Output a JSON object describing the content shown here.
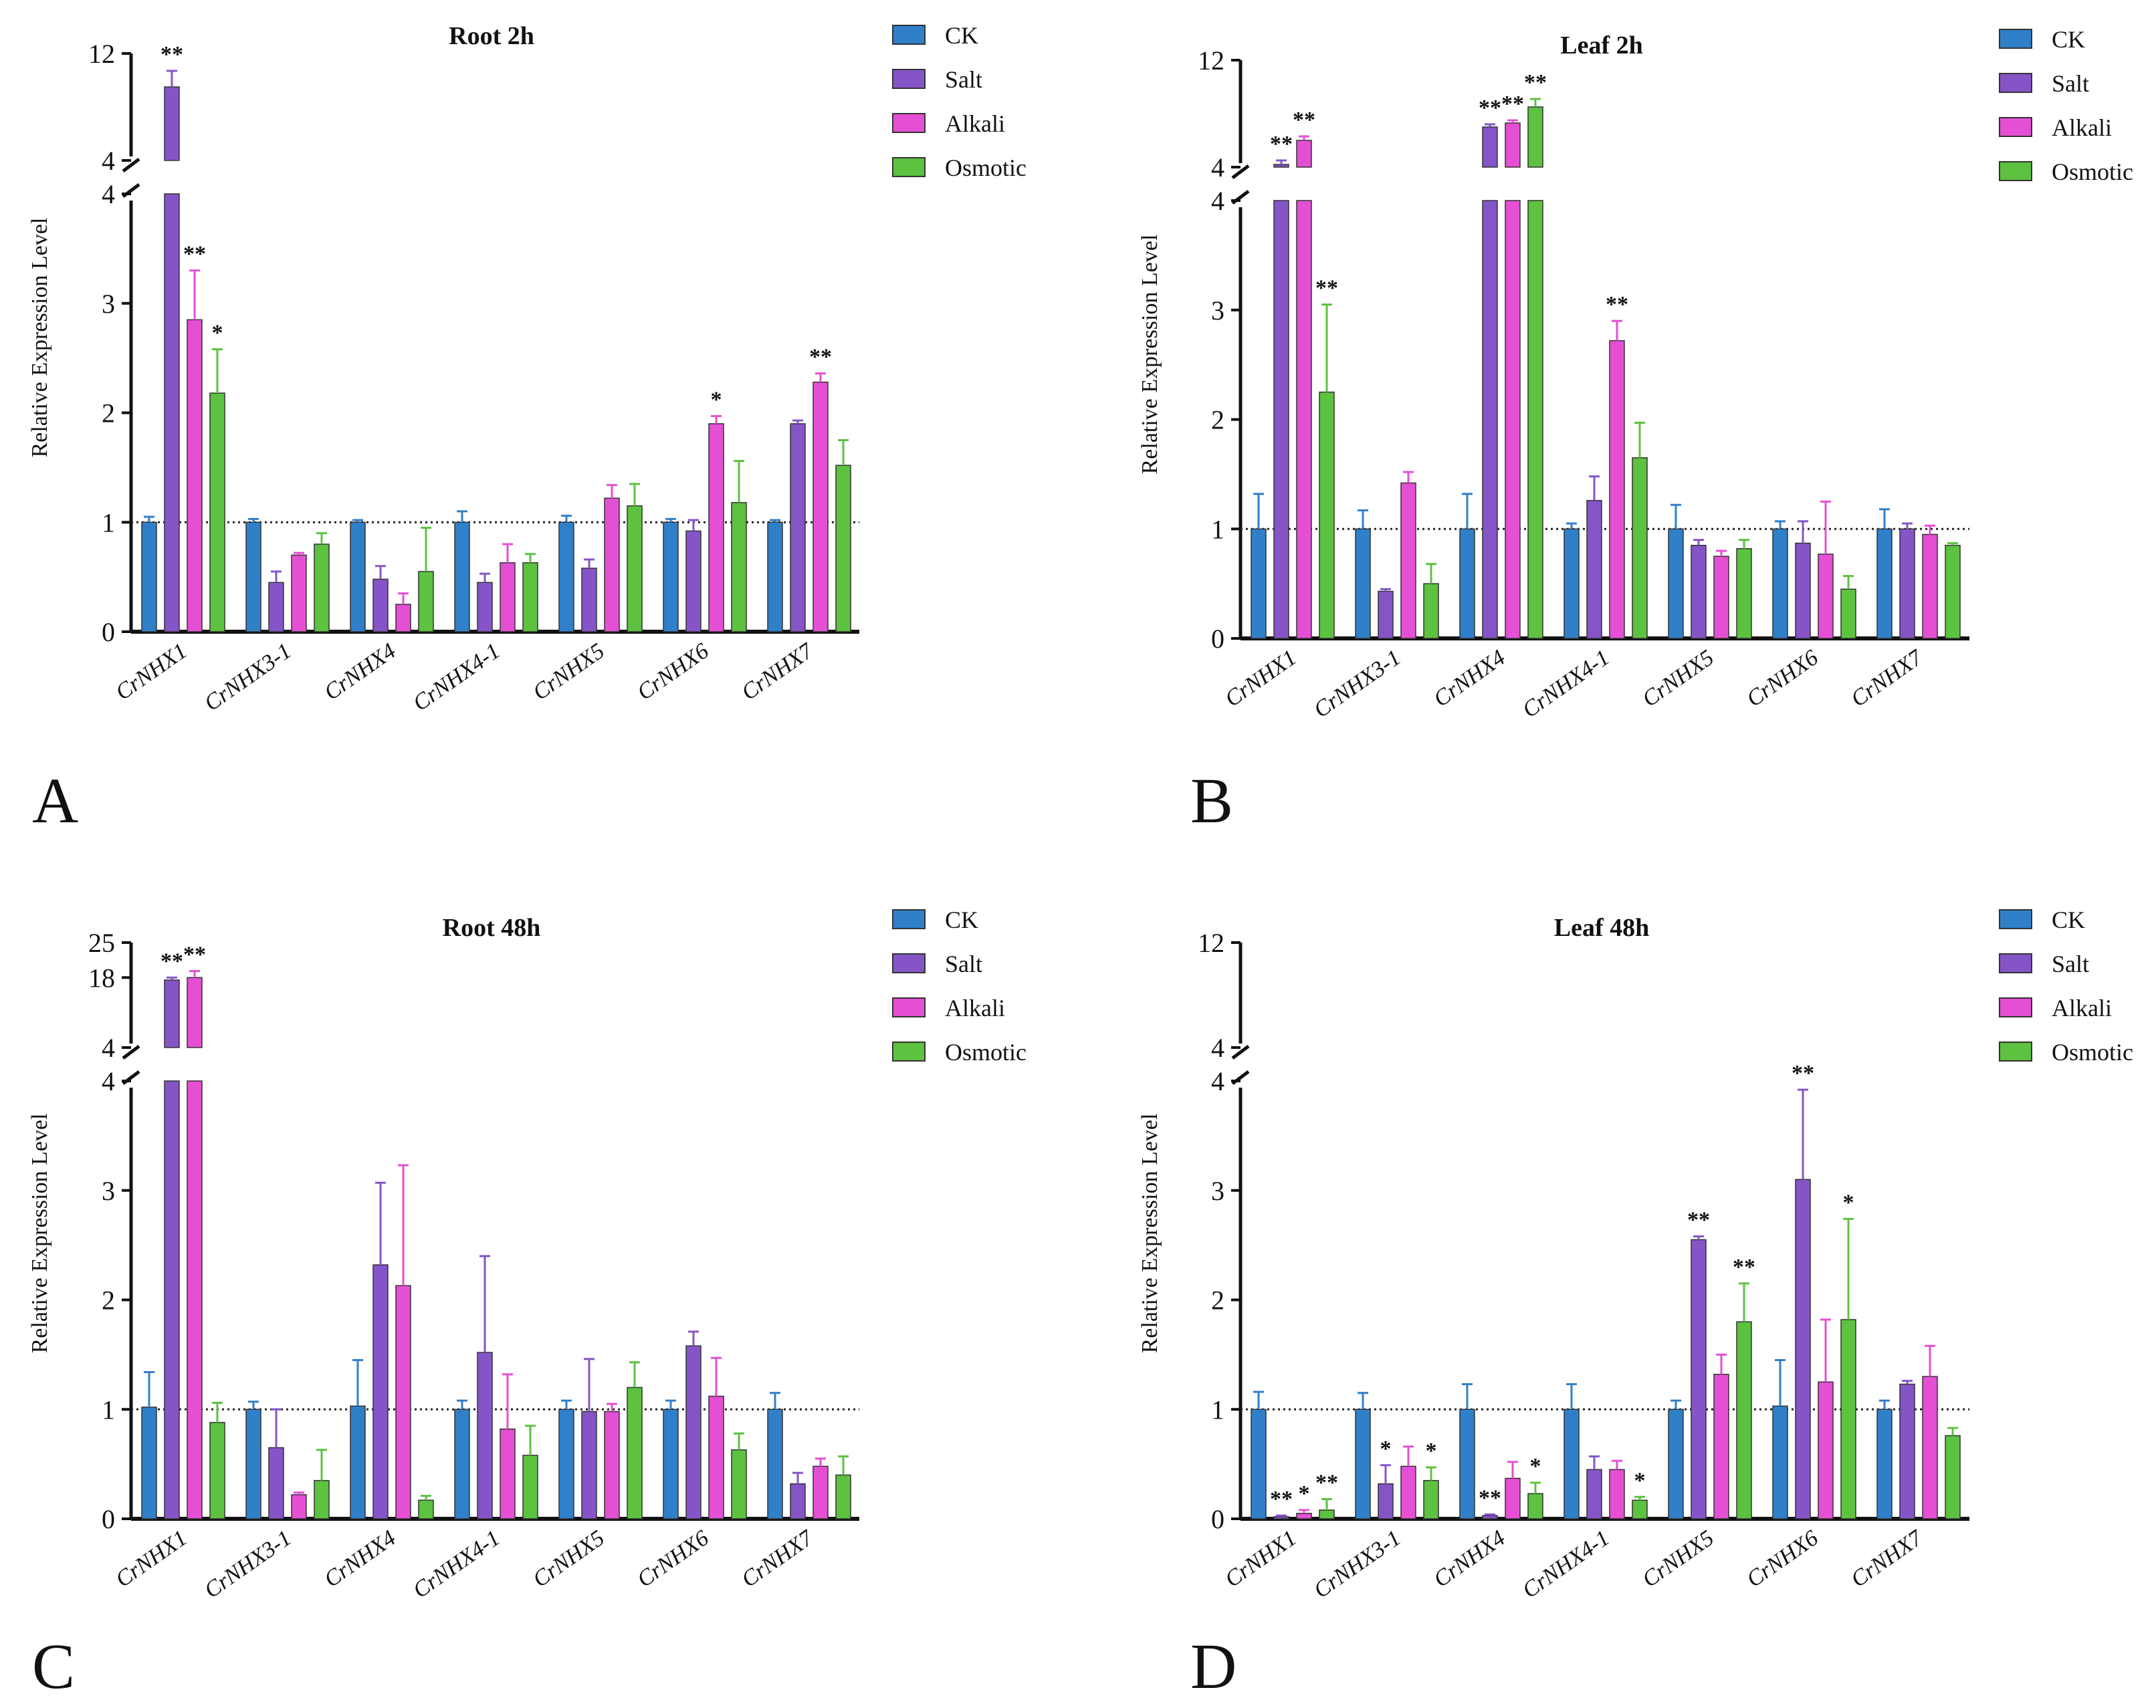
{
  "colors": {
    "CK": "#2f7fc9",
    "Salt": "#8555c7",
    "Alkali": "#e54fd4",
    "Osmotic": "#5cc23f",
    "axis": "#111111"
  },
  "chart_data": [
    {
      "type": "bar",
      "panel": "A",
      "title": "Root 2h",
      "ylabel": "Relative Expression Level",
      "xlabel": "",
      "categories": [
        "CrNHX1",
        "CrNHX3-1",
        "CrNHX4",
        "CrNHX4-1",
        "CrNHX5",
        "CrNHX6",
        "CrNHX7"
      ],
      "lower_axis": {
        "ylim": [
          0,
          4
        ],
        "ticks": [
          "0",
          "1",
          "2",
          "3",
          "4"
        ]
      },
      "upper_axis": {
        "ylim": [
          4,
          12
        ],
        "ticks": [
          "4",
          "12"
        ]
      },
      "reference_line": 1,
      "legend": [
        "CK",
        "Salt",
        "Alkali",
        "Osmotic"
      ],
      "series": [
        {
          "name": "CK",
          "values": [
            1.0,
            1.0,
            1.0,
            1.0,
            1.0,
            1.0,
            1.0
          ],
          "errors": [
            0.05,
            0.03,
            0.02,
            0.1,
            0.06,
            0.03,
            0.02
          ],
          "sig": [
            "",
            "",
            "",
            "",
            "",
            "",
            ""
          ]
        },
        {
          "name": "Salt",
          "values": [
            9.5,
            0.45,
            0.48,
            0.45,
            0.58,
            0.92,
            1.9
          ],
          "errors": [
            1.2,
            0.1,
            0.12,
            0.08,
            0.08,
            0.1,
            0.03
          ],
          "sig": [
            "**",
            "",
            "",
            "",
            "",
            "",
            ""
          ]
        },
        {
          "name": "Alkali",
          "values": [
            2.85,
            0.7,
            0.25,
            0.63,
            1.22,
            1.9,
            2.28
          ],
          "errors": [
            0.45,
            0.02,
            0.1,
            0.17,
            0.12,
            0.07,
            0.08
          ],
          "sig": [
            "**",
            "",
            "",
            "",
            "",
            "*",
            "**"
          ]
        },
        {
          "name": "Osmotic",
          "values": [
            2.18,
            0.8,
            0.55,
            0.63,
            1.15,
            1.18,
            1.52
          ],
          "errors": [
            0.4,
            0.1,
            0.4,
            0.08,
            0.2,
            0.38,
            0.23
          ],
          "sig": [
            "*",
            "",
            "",
            "",
            "",
            "",
            ""
          ]
        }
      ]
    },
    {
      "type": "bar",
      "panel": "B",
      "title": "Leaf 2h",
      "ylabel": "Relative Expression Level",
      "xlabel": "",
      "categories": [
        "CrNHX1",
        "CrNHX3-1",
        "CrNHX4",
        "CrNHX4-1",
        "CrNHX5",
        "CrNHX6",
        "CrNHX7"
      ],
      "lower_axis": {
        "ylim": [
          0,
          4
        ],
        "ticks": [
          "0",
          "1",
          "2",
          "3",
          "4"
        ]
      },
      "upper_axis": {
        "ylim": [
          4,
          12
        ],
        "ticks": [
          "4",
          "12"
        ]
      },
      "reference_line": 1,
      "legend": [
        "CK",
        "Salt",
        "Alkali",
        "Osmotic"
      ],
      "series": [
        {
          "name": "CK",
          "values": [
            1.0,
            1.0,
            1.0,
            1.0,
            1.0,
            1.0,
            1.0
          ],
          "errors": [
            0.32,
            0.17,
            0.32,
            0.05,
            0.22,
            0.07,
            0.18
          ],
          "sig": [
            "",
            "",
            "",
            "",
            "",
            "",
            ""
          ]
        },
        {
          "name": "Salt",
          "values": [
            4.2,
            0.43,
            7.0,
            1.26,
            0.85,
            0.87,
            1.0
          ],
          "errors": [
            0.3,
            0.02,
            0.2,
            0.22,
            0.05,
            0.2,
            0.05
          ],
          "sig": [
            "**",
            "",
            "**",
            "",
            "",
            "",
            ""
          ]
        },
        {
          "name": "Alkali",
          "values": [
            6.0,
            1.42,
            7.3,
            2.72,
            0.75,
            0.77,
            0.95
          ],
          "errors": [
            0.3,
            0.1,
            0.2,
            0.18,
            0.05,
            0.48,
            0.08
          ],
          "sig": [
            "**",
            "",
            "**",
            "**",
            "",
            "",
            ""
          ]
        },
        {
          "name": "Osmotic",
          "values": [
            2.25,
            0.5,
            8.5,
            1.65,
            0.82,
            0.45,
            0.85
          ],
          "errors": [
            0.8,
            0.18,
            0.6,
            0.32,
            0.08,
            0.12,
            0.02
          ],
          "sig": [
            "**",
            "",
            "**",
            "",
            "",
            "",
            ""
          ]
        }
      ]
    },
    {
      "type": "bar",
      "panel": "C",
      "title": "Root 48h",
      "ylabel": "Relative Expression Level",
      "xlabel": "",
      "categories": [
        "CrNHX1",
        "CrNHX3-1",
        "CrNHX4",
        "CrNHX4-1",
        "CrNHX5",
        "CrNHX6",
        "CrNHX7"
      ],
      "lower_axis": {
        "ylim": [
          0,
          4
        ],
        "ticks": [
          "0",
          "1",
          "2",
          "3",
          "4"
        ]
      },
      "upper_axis": {
        "ylim": [
          4,
          25
        ],
        "ticks": [
          "4",
          "18",
          "25"
        ]
      },
      "reference_line": 1,
      "legend": [
        "CK",
        "Salt",
        "Alkali",
        "Osmotic"
      ],
      "series": [
        {
          "name": "CK",
          "values": [
            1.02,
            1.0,
            1.03,
            1.0,
            1.0,
            1.0,
            1.0
          ],
          "errors": [
            0.32,
            0.07,
            0.42,
            0.08,
            0.08,
            0.08,
            0.15
          ],
          "sig": [
            "",
            "",
            "",
            "",
            "",
            "",
            ""
          ]
        },
        {
          "name": "Salt",
          "values": [
            17.5,
            0.65,
            2.32,
            1.52,
            0.98,
            1.58,
            0.32
          ],
          "errors": [
            0.5,
            0.35,
            0.75,
            0.88,
            0.48,
            0.13,
            0.1
          ],
          "sig": [
            "**",
            "",
            "",
            "",
            "",
            "",
            ""
          ]
        },
        {
          "name": "Alkali",
          "values": [
            18.0,
            0.22,
            2.13,
            0.82,
            0.98,
            1.12,
            0.48
          ],
          "errors": [
            1.3,
            0.02,
            1.1,
            0.5,
            0.07,
            0.35,
            0.07
          ],
          "sig": [
            "**",
            "",
            "",
            "",
            "",
            "",
            ""
          ]
        },
        {
          "name": "Osmotic",
          "values": [
            0.88,
            0.35,
            0.17,
            0.58,
            1.2,
            0.63,
            0.4
          ],
          "errors": [
            0.18,
            0.28,
            0.04,
            0.27,
            0.23,
            0.15,
            0.17
          ],
          "sig": [
            "",
            "",
            "",
            "",
            "",
            "",
            ""
          ]
        }
      ]
    },
    {
      "type": "bar",
      "panel": "D",
      "title": "Leaf 48h",
      "ylabel": "Relative Expression Level",
      "xlabel": "",
      "categories": [
        "CrNHX1",
        "CrNHX3-1",
        "CrNHX4",
        "CrNHX4-1",
        "CrNHX5",
        "CrNHX6",
        "CrNHX7"
      ],
      "lower_axis": {
        "ylim": [
          0,
          4
        ],
        "ticks": [
          "0",
          "1",
          "2",
          "3",
          "4"
        ]
      },
      "upper_axis": {
        "ylim": [
          4,
          12
        ],
        "ticks": [
          "4",
          "12"
        ]
      },
      "reference_line": 1,
      "legend": [
        "CK",
        "Salt",
        "Alkali",
        "Osmotic"
      ],
      "series": [
        {
          "name": "CK",
          "values": [
            1.0,
            1.0,
            1.0,
            1.0,
            1.0,
            1.03,
            1.0
          ],
          "errors": [
            0.16,
            0.15,
            0.23,
            0.23,
            0.08,
            0.42,
            0.08
          ],
          "sig": [
            "",
            "",
            "",
            "",
            "",
            "",
            ""
          ]
        },
        {
          "name": "Salt",
          "values": [
            0.02,
            0.32,
            0.03,
            0.45,
            2.55,
            3.1,
            1.23
          ],
          "errors": [
            0.01,
            0.17,
            0.01,
            0.12,
            0.03,
            0.82,
            0.03
          ],
          "sig": [
            "**",
            "*",
            "**",
            "",
            "**",
            "**",
            ""
          ]
        },
        {
          "name": "Alkali",
          "values": [
            0.05,
            0.48,
            0.37,
            0.45,
            1.32,
            1.25,
            1.3
          ],
          "errors": [
            0.03,
            0.18,
            0.15,
            0.08,
            0.18,
            0.57,
            0.28
          ],
          "sig": [
            "*",
            "",
            "",
            "",
            "",
            "",
            ""
          ]
        },
        {
          "name": "Osmotic",
          "values": [
            0.08,
            0.35,
            0.23,
            0.17,
            1.8,
            1.82,
            0.76
          ],
          "errors": [
            0.1,
            0.12,
            0.1,
            0.03,
            0.35,
            0.92,
            0.07
          ],
          "sig": [
            "**",
            "*",
            "*",
            "*",
            "**",
            "*",
            ""
          ]
        }
      ]
    }
  ]
}
